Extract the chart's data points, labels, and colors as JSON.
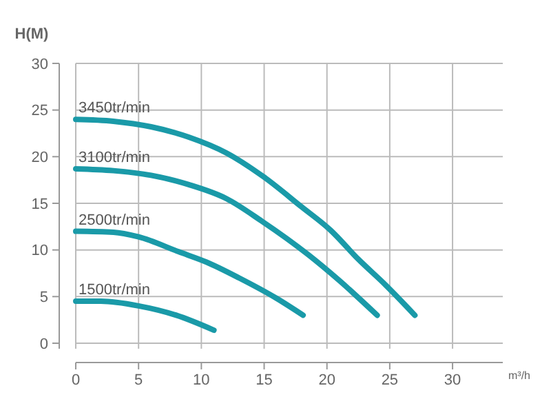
{
  "chart_data": {
    "type": "line",
    "xlabel": "m³/h",
    "ylabel": "H(M)",
    "xlim": [
      0,
      34
    ],
    "ylim": [
      0,
      30
    ],
    "xticks": [
      0,
      5,
      10,
      15,
      20,
      25,
      30
    ],
    "yticks": [
      0,
      5,
      10,
      15,
      20,
      25,
      30
    ],
    "grid": true,
    "legend": false,
    "marker": "none",
    "line_style": "solid",
    "series": [
      {
        "name": "3450tr/min",
        "color": "#1a9aa8",
        "x": [
          0,
          3,
          6,
          9,
          12,
          15,
          18,
          20.3,
          22.5,
          24.7,
          27
        ],
        "values": [
          24,
          23.8,
          23.2,
          22.1,
          20.4,
          17.8,
          14.6,
          12.1,
          9,
          6.2,
          3
        ]
      },
      {
        "name": "3100tr/min",
        "color": "#1a9aa8",
        "x": [
          0,
          3,
          6,
          9,
          12,
          14.8,
          18.5,
          21,
          24
        ],
        "values": [
          18.7,
          18.5,
          18,
          17,
          15.5,
          13.1,
          9.5,
          6.7,
          3
        ]
      },
      {
        "name": "2500tr/min",
        "color": "#1a9aa8",
        "x": [
          0,
          3,
          5,
          8.2,
          10.4,
          13,
          16,
          18.1
        ],
        "values": [
          12,
          11.9,
          11.4,
          9.8,
          8.7,
          7,
          4.8,
          3
        ]
      },
      {
        "name": "1500tr/min",
        "color": "#1a9aa8",
        "x": [
          0,
          2,
          5,
          8,
          11
        ],
        "values": [
          4.5,
          4.5,
          4,
          3,
          1.4
        ]
      }
    ]
  }
}
